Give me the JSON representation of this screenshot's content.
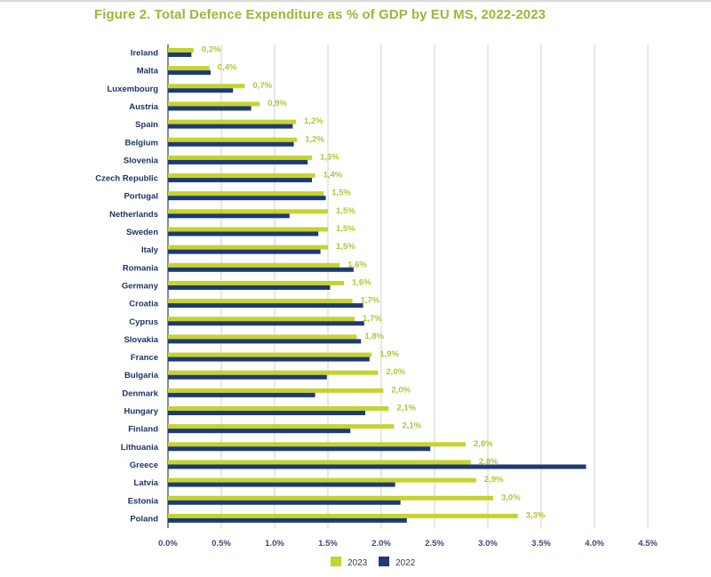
{
  "chart_data": {
    "type": "bar",
    "orientation": "horizontal",
    "title": "Figure 2. Total Defence Expenditure as % of GDP by EU MS, 2022-2023",
    "xlabel": "",
    "ylabel": "",
    "xlim": [
      0,
      4.5
    ],
    "grid": true,
    "legend_position": "bottom-center",
    "categories": [
      "Ireland",
      "Malta",
      "Luxembourg",
      "Austria",
      "Spain",
      "Belgium",
      "Slovenia",
      "Czech Republic",
      "Portugal",
      "Netherlands",
      "Sweden",
      "Italy",
      "Romania",
      "Germany",
      "Croatia",
      "Cyprus",
      "Slovakia",
      "France",
      "Bulgaria",
      "Denmark",
      "Hungary",
      "Finland",
      "Lithuania",
      "Greece",
      "Latvia",
      "Estonia",
      "Poland"
    ],
    "series": [
      {
        "name": "2023",
        "color": "#c5d32f",
        "values": [
          0.24,
          0.39,
          0.72,
          0.86,
          1.2,
          1.21,
          1.35,
          1.38,
          1.46,
          1.5,
          1.5,
          1.5,
          1.61,
          1.65,
          1.73,
          1.75,
          1.77,
          1.91,
          1.97,
          2.02,
          2.07,
          2.12,
          2.79,
          2.84,
          2.89,
          3.05,
          3.28
        ],
        "data_labels": [
          "0,2%",
          "0,4%",
          "0,7%",
          "0,9%",
          "1,2%",
          "1,2%",
          "1,3%",
          "1,4%",
          "1,5%",
          "1,5%",
          "1,5%",
          "1,5%",
          "1,6%",
          "1,6%",
          "1,7%",
          "1,7%",
          "1,8%",
          "1,9%",
          "2,0%",
          "2,0%",
          "2,1%",
          "2,1%",
          "2,8%",
          "2,8%",
          "2,9%",
          "3,0%",
          "3,3%"
        ]
      },
      {
        "name": "2022",
        "color": "#1f3a73",
        "values": [
          0.22,
          0.4,
          0.61,
          0.78,
          1.17,
          1.18,
          1.31,
          1.35,
          1.48,
          1.14,
          1.41,
          1.43,
          1.74,
          1.52,
          1.83,
          1.84,
          1.81,
          1.89,
          1.49,
          1.38,
          1.85,
          1.71,
          2.46,
          3.92,
          2.13,
          2.18,
          2.24
        ]
      }
    ],
    "x_ticks": [
      0,
      0.5,
      1.0,
      1.5,
      2.0,
      2.5,
      3.0,
      3.5,
      4.0,
      4.5
    ],
    "x_tick_labels": [
      "0.0%",
      "0.5%",
      "1.0%",
      "1.5%",
      "2.0%",
      "2.5%",
      "3.0%",
      "3.5%",
      "4.0%",
      "4.5%"
    ],
    "legend": [
      "2023",
      "2022"
    ]
  }
}
